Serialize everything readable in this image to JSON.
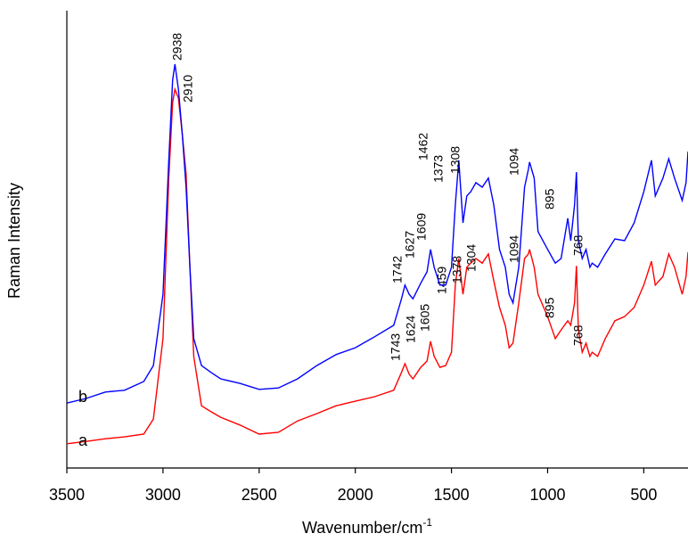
{
  "chart_data": {
    "type": "line",
    "xlabel": "Wavenumber/cm",
    "xlabel_sup": "-1",
    "ylabel": "Raman Intensity",
    "xlim": [
      3500,
      270
    ],
    "ylim": [
      0,
      100
    ],
    "xticks": [
      3500,
      3000,
      2500,
      2000,
      1500,
      1000,
      500
    ],
    "x": [
      3500,
      3400,
      3300,
      3200,
      3100,
      3050,
      3000,
      2970,
      2950,
      2938,
      2920,
      2900,
      2880,
      2860,
      2840,
      2800,
      2750,
      2700,
      2600,
      2500,
      2400,
      2300,
      2200,
      2100,
      2000,
      1900,
      1800,
      1760,
      1742,
      1720,
      1700,
      1660,
      1627,
      1609,
      1590,
      1560,
      1530,
      1500,
      1480,
      1462,
      1440,
      1420,
      1400,
      1373,
      1340,
      1308,
      1280,
      1250,
      1220,
      1200,
      1180,
      1150,
      1120,
      1100,
      1094,
      1070,
      1050,
      1000,
      960,
      930,
      895,
      880,
      860,
      850,
      840,
      820,
      800,
      780,
      768,
      740,
      700,
      650,
      600,
      550,
      500,
      460,
      440,
      400,
      370,
      340,
      300,
      280,
      270
    ],
    "series": [
      {
        "name": "a",
        "color": "#ff0000",
        "values": [
          5.3,
          5.8,
          6.4,
          6.8,
          7.4,
          10.7,
          28.3,
          63.4,
          79.9,
          82.8,
          80.9,
          73.1,
          64.3,
          43.9,
          24.4,
          13.6,
          12.3,
          11.1,
          9.4,
          7.4,
          7.8,
          10.3,
          11.9,
          13.6,
          14.6,
          15.6,
          17.0,
          20.9,
          22.8,
          20.5,
          19.5,
          22.0,
          23.4,
          27.7,
          24.4,
          22.0,
          22.4,
          25.3,
          40.0,
          45.8,
          38.0,
          43.9,
          44.8,
          45.8,
          44.8,
          46.8,
          40.9,
          35.1,
          31.2,
          26.3,
          27.3,
          36.1,
          45.8,
          46.8,
          47.8,
          43.9,
          38.0,
          33.1,
          28.3,
          30.2,
          32.2,
          31.2,
          36.1,
          44.2,
          30.2,
          25.3,
          27.3,
          24.4,
          25.3,
          24.4,
          28.3,
          32.2,
          33.1,
          35.1,
          40.0,
          45.2,
          40.0,
          41.9,
          46.8,
          43.9,
          38.0,
          41.9,
          47.2
        ],
        "annotations": [
          "2910",
          "1743",
          "1624",
          "1605",
          "1459",
          "1378",
          "1304",
          "1094",
          "895",
          "768"
        ]
      },
      {
        "name": "b",
        "color": "#0000ff",
        "values": [
          14.2,
          15.2,
          16.6,
          17.0,
          18.9,
          22.4,
          38.0,
          67.3,
          84.8,
          88.3,
          82.8,
          73.1,
          61.4,
          43.9,
          28.3,
          22.4,
          20.9,
          19.5,
          18.5,
          17.2,
          17.5,
          19.5,
          22.4,
          24.8,
          26.3,
          28.7,
          31.2,
          37.0,
          40.0,
          38.0,
          37.0,
          40.4,
          42.9,
          47.8,
          43.9,
          40.0,
          40.0,
          43.9,
          57.5,
          67.3,
          53.6,
          59.5,
          60.4,
          62.4,
          61.4,
          63.4,
          57.5,
          47.8,
          43.9,
          38.0,
          36.1,
          43.9,
          61.4,
          65.3,
          66.9,
          63.4,
          51.7,
          47.8,
          44.8,
          45.8,
          54.6,
          49.7,
          57.5,
          64.7,
          49.7,
          45.8,
          47.8,
          43.9,
          44.8,
          43.9,
          46.8,
          50.1,
          49.7,
          53.6,
          60.4,
          67.3,
          59.5,
          63.4,
          67.6,
          63.4,
          58.5,
          62.4,
          69.2
        ],
        "annotations": [
          "2938",
          "1462",
          "1373",
          "1308",
          "1094",
          "1742",
          "1627",
          "1609",
          "895",
          "768"
        ]
      }
    ]
  }
}
